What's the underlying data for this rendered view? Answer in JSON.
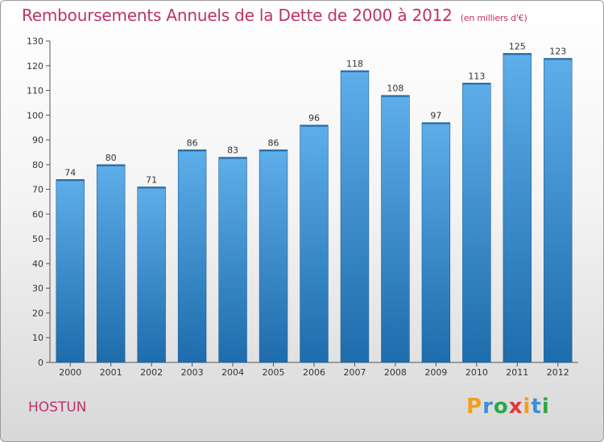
{
  "header": {
    "title": "Remboursements Annuels de la Dette de 2000 à 2012",
    "subtitle": "(en milliers d'€)"
  },
  "footer": {
    "commune": "HOSTUN",
    "logo_text": "Proxiti"
  },
  "colors": {
    "title": "#c0306a",
    "bar_top": "#5aa9e6",
    "bar_bottom": "#1f6fae"
  },
  "chart_data": {
    "type": "bar",
    "title": "Remboursements Annuels de la Dette de 2000 à 2012",
    "subtitle": "(en milliers d'€)",
    "categories": [
      "2000",
      "2001",
      "2002",
      "2003",
      "2004",
      "2005",
      "2006",
      "2007",
      "2008",
      "2009",
      "2010",
      "2011",
      "2012"
    ],
    "values": [
      74,
      80,
      71,
      86,
      83,
      86,
      96,
      118,
      108,
      97,
      113,
      125,
      123
    ],
    "ylim": [
      0,
      130
    ],
    "yticks": [
      0,
      10,
      20,
      30,
      40,
      50,
      60,
      70,
      80,
      90,
      100,
      110,
      120,
      130
    ],
    "grid": false,
    "data_labels": true
  }
}
